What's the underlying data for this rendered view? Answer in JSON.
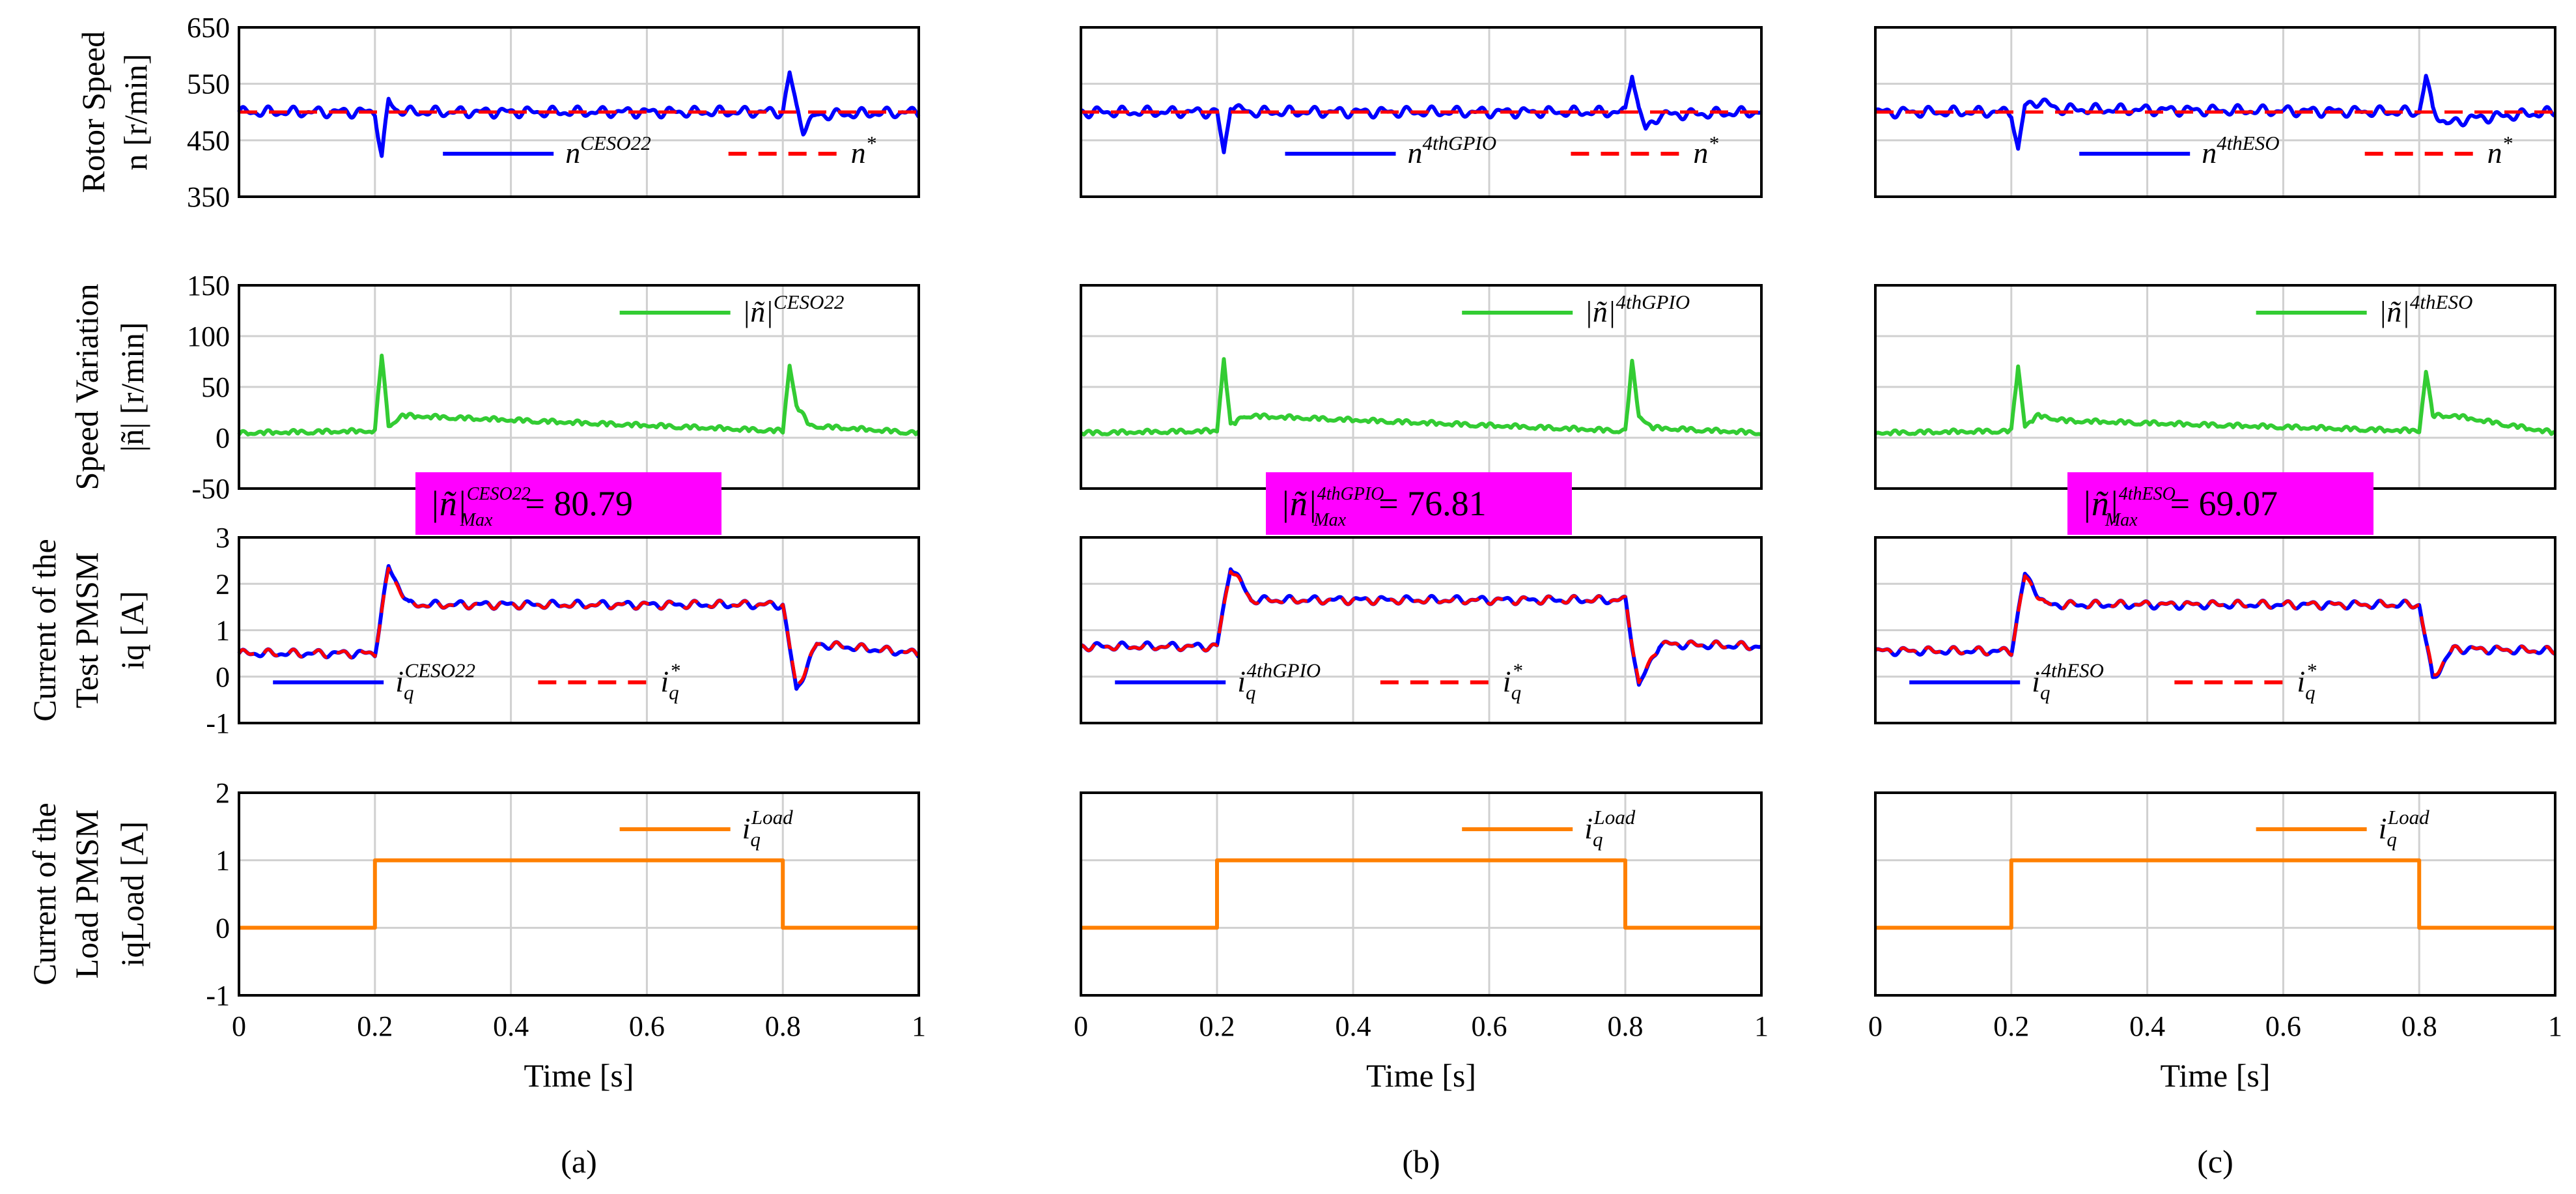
{
  "figure": {
    "rows": [
      {
        "key": "speed",
        "ylabel_lines": [
          "Rotor Speed",
          "n [r/min]"
        ]
      },
      {
        "key": "var",
        "ylabel_lines": [
          "Speed Variation",
          "|ñ| [r/min]"
        ]
      },
      {
        "key": "iq",
        "ylabel_lines": [
          "Current of the",
          "Test PMSM",
          "iq [A]"
        ]
      },
      {
        "key": "load",
        "ylabel_lines": [
          "Current of the",
          "Load PMSM",
          "iqLoad [A]"
        ]
      }
    ],
    "xlabel": "Time [s]",
    "captions": [
      "(a)",
      "(b)",
      "(c)"
    ],
    "max_annotations": [
      {
        "prefix": "|ñ|",
        "sup": "CESO22",
        "sub": "Max",
        "value": "= 80.79"
      },
      {
        "prefix": "|ñ|",
        "sup": "4thGPIO",
        "sub": "Max",
        "value": "= 76.81"
      },
      {
        "prefix": "|ñ|",
        "sup": "4thESO",
        "sub": "Max",
        "value": "= 69.07"
      }
    ],
    "colors": {
      "est": "#0000ff",
      "ref": "#ff0000",
      "var": "#33cc33",
      "load": "#ff8000",
      "annotation_bg": "#ff00ff",
      "grid": "#d0d0d0"
    }
  },
  "chart_data": [
    {
      "type": "line",
      "panel": "a-speed",
      "x_range": [
        0,
        1
      ],
      "ylim": [
        350,
        650
      ],
      "yticks": [
        350,
        450,
        550,
        650
      ],
      "series": [
        {
          "name": "n^CESO22",
          "x": [
            0,
            0.2,
            0.21,
            0.22,
            0.23,
            0.25,
            0.8,
            0.81,
            0.82,
            0.83,
            0.85,
            1
          ],
          "y": [
            500,
            500,
            420,
            520,
            505,
            500,
            500,
            568,
            510,
            470,
            495,
            500
          ]
        },
        {
          "name": "n*",
          "x": [
            0,
            1
          ],
          "y": [
            500,
            500
          ]
        }
      ],
      "legend": [
        {
          "label": "n",
          "sup": "CESO22"
        },
        {
          "label": "n",
          "sup": "*"
        }
      ]
    },
    {
      "type": "line",
      "panel": "a-var",
      "x_range": [
        0,
        1
      ],
      "ylim": [
        -50,
        150
      ],
      "yticks": [
        -50,
        0,
        50,
        100,
        150
      ],
      "series": [
        {
          "name": "|ñ|^CESO22",
          "x": [
            0,
            0.2,
            0.21,
            0.22,
            0.24,
            0.8,
            0.81,
            0.82,
            0.84,
            1
          ],
          "y": [
            3,
            5,
            80,
            10,
            20,
            5,
            70,
            30,
            10,
            3
          ]
        }
      ],
      "legend": [
        {
          "label": "|ñ|",
          "sup": "CESO22"
        }
      ]
    },
    {
      "type": "line",
      "panel": "a-iq",
      "x_range": [
        0,
        1
      ],
      "ylim": [
        -1,
        3
      ],
      "yticks": [
        -1,
        0,
        1,
        2,
        3
      ],
      "series": [
        {
          "name": "iq^CESO22",
          "x": [
            0,
            0.2,
            0.22,
            0.25,
            0.8,
            0.82,
            0.85,
            1
          ],
          "y": [
            0.5,
            0.5,
            2.35,
            1.55,
            1.55,
            -0.3,
            0.7,
            0.5
          ]
        },
        {
          "name": "iq*",
          "x": [
            0,
            0.2,
            0.22,
            0.25,
            0.8,
            0.82,
            0.85,
            1
          ],
          "y": [
            0.5,
            0.5,
            2.3,
            1.55,
            1.55,
            -0.25,
            0.7,
            0.5
          ]
        }
      ],
      "legend": [
        {
          "label": "i",
          "sub": "q",
          "sup": "CESO22"
        },
        {
          "label": "i",
          "sub": "q",
          "sup": "*"
        }
      ]
    },
    {
      "type": "line",
      "panel": "a-load",
      "x_range": [
        0,
        1
      ],
      "ylim": [
        -1,
        2
      ],
      "yticks": [
        -1,
        0,
        1,
        2
      ],
      "xticks": [
        0,
        0.2,
        0.4,
        0.6,
        0.8,
        1
      ],
      "series": [
        {
          "name": "iq^Load",
          "x": [
            0,
            0.2,
            0.2,
            0.8,
            0.8,
            1
          ],
          "y": [
            0,
            0,
            1,
            1,
            0,
            0
          ]
        }
      ],
      "legend": [
        {
          "label": "i",
          "sub": "q",
          "sup": "Load"
        }
      ]
    },
    {
      "type": "line",
      "panel": "b-speed",
      "x_range": [
        0,
        1
      ],
      "ylim": [
        350,
        650
      ],
      "series": [
        {
          "name": "n^4thGPIO",
          "x": [
            0,
            0.2,
            0.21,
            0.22,
            0.23,
            0.25,
            0.8,
            0.81,
            0.82,
            0.83,
            0.85,
            1
          ],
          "y": [
            500,
            500,
            425,
            515,
            505,
            500,
            500,
            572,
            505,
            468,
            495,
            500
          ]
        },
        {
          "name": "n*",
          "x": [
            0,
            1
          ],
          "y": [
            500,
            500
          ]
        }
      ],
      "legend": [
        {
          "label": "n",
          "sup": "4thGPIO"
        },
        {
          "label": "n",
          "sup": "*"
        }
      ]
    },
    {
      "type": "line",
      "panel": "b-var",
      "x_range": [
        0,
        1
      ],
      "ylim": [
        -50,
        150
      ],
      "series": [
        {
          "name": "|ñ|^4thGPIO",
          "x": [
            0,
            0.2,
            0.21,
            0.22,
            0.24,
            0.8,
            0.81,
            0.82,
            0.84,
            1
          ],
          "y": [
            3,
            5,
            76,
            10,
            20,
            5,
            72,
            20,
            8,
            3
          ]
        }
      ],
      "legend": [
        {
          "label": "|ñ|",
          "sup": "4thGPIO"
        }
      ]
    },
    {
      "type": "line",
      "panel": "b-iq",
      "x_range": [
        0,
        1
      ],
      "ylim": [
        -1,
        3
      ],
      "series": [
        {
          "name": "iq^4thGPIO",
          "x": [
            0,
            0.2,
            0.22,
            0.25,
            0.8,
            0.82,
            0.85,
            1
          ],
          "y": [
            0.65,
            0.65,
            2.4,
            1.65,
            1.65,
            -0.2,
            0.7,
            0.65
          ]
        },
        {
          "name": "iq*",
          "x": [
            0,
            0.2,
            0.22,
            0.25,
            0.8,
            0.82,
            0.85,
            1
          ],
          "y": [
            0.65,
            0.65,
            2.35,
            1.65,
            1.65,
            -0.15,
            0.7,
            0.65
          ]
        }
      ],
      "legend": [
        {
          "label": "i",
          "sub": "q",
          "sup": "4thGPIO"
        },
        {
          "label": "i",
          "sub": "q",
          "sup": "*"
        }
      ]
    },
    {
      "type": "line",
      "panel": "b-load",
      "x_range": [
        0,
        1
      ],
      "ylim": [
        -1,
        2
      ],
      "series": [
        {
          "name": "iq^Load",
          "x": [
            0,
            0.2,
            0.2,
            0.8,
            0.8,
            1
          ],
          "y": [
            0,
            0,
            1,
            1,
            0,
            0
          ]
        }
      ],
      "legend": [
        {
          "label": "i",
          "sub": "q",
          "sup": "Load"
        }
      ]
    },
    {
      "type": "line",
      "panel": "c-speed",
      "x_range": [
        0,
        1
      ],
      "ylim": [
        350,
        650
      ],
      "series": [
        {
          "name": "n^4thESO",
          "x": [
            0,
            0.2,
            0.21,
            0.22,
            0.24,
            0.27,
            0.8,
            0.81,
            0.82,
            0.84,
            0.87,
            1
          ],
          "y": [
            500,
            500,
            432,
            510,
            520,
            505,
            500,
            562,
            505,
            478,
            488,
            500
          ]
        },
        {
          "name": "n*",
          "x": [
            0,
            1
          ],
          "y": [
            500,
            500
          ]
        }
      ],
      "legend": [
        {
          "label": "n",
          "sup": "4thESO"
        },
        {
          "label": "n",
          "sup": "*"
        }
      ]
    },
    {
      "type": "line",
      "panel": "c-var",
      "x_range": [
        0,
        1
      ],
      "ylim": [
        -50,
        150
      ],
      "series": [
        {
          "name": "|ñ|^4thESO",
          "x": [
            0,
            0.2,
            0.21,
            0.22,
            0.24,
            0.28,
            0.8,
            0.81,
            0.82,
            0.85,
            1
          ],
          "y": [
            3,
            5,
            69,
            10,
            20,
            15,
            5,
            64,
            20,
            20,
            3
          ]
        }
      ],
      "legend": [
        {
          "label": "|ñ|",
          "sup": "4thESO"
        }
      ]
    },
    {
      "type": "line",
      "panel": "c-iq",
      "x_range": [
        0,
        1
      ],
      "ylim": [
        -1,
        3
      ],
      "series": [
        {
          "name": "iq^4thESO",
          "x": [
            0,
            0.2,
            0.22,
            0.25,
            0.8,
            0.82,
            0.85,
            1
          ],
          "y": [
            0.55,
            0.55,
            2.2,
            1.55,
            1.55,
            -0.05,
            0.6,
            0.55
          ]
        },
        {
          "name": "iq*",
          "x": [
            0,
            0.2,
            0.22,
            0.25,
            0.8,
            0.82,
            0.85,
            1
          ],
          "y": [
            0.55,
            0.55,
            2.15,
            1.55,
            1.55,
            0.0,
            0.6,
            0.55
          ]
        }
      ],
      "legend": [
        {
          "label": "i",
          "sub": "q",
          "sup": "4thESO"
        },
        {
          "label": "i",
          "sub": "q",
          "sup": "*"
        }
      ]
    },
    {
      "type": "line",
      "panel": "c-load",
      "x_range": [
        0,
        1
      ],
      "ylim": [
        -1,
        2
      ],
      "series": [
        {
          "name": "iq^Load",
          "x": [
            0,
            0.2,
            0.2,
            0.8,
            0.8,
            1
          ],
          "y": [
            0,
            0,
            1,
            1,
            0,
            0
          ]
        }
      ],
      "legend": [
        {
          "label": "i",
          "sub": "q",
          "sup": "Load"
        }
      ]
    }
  ]
}
